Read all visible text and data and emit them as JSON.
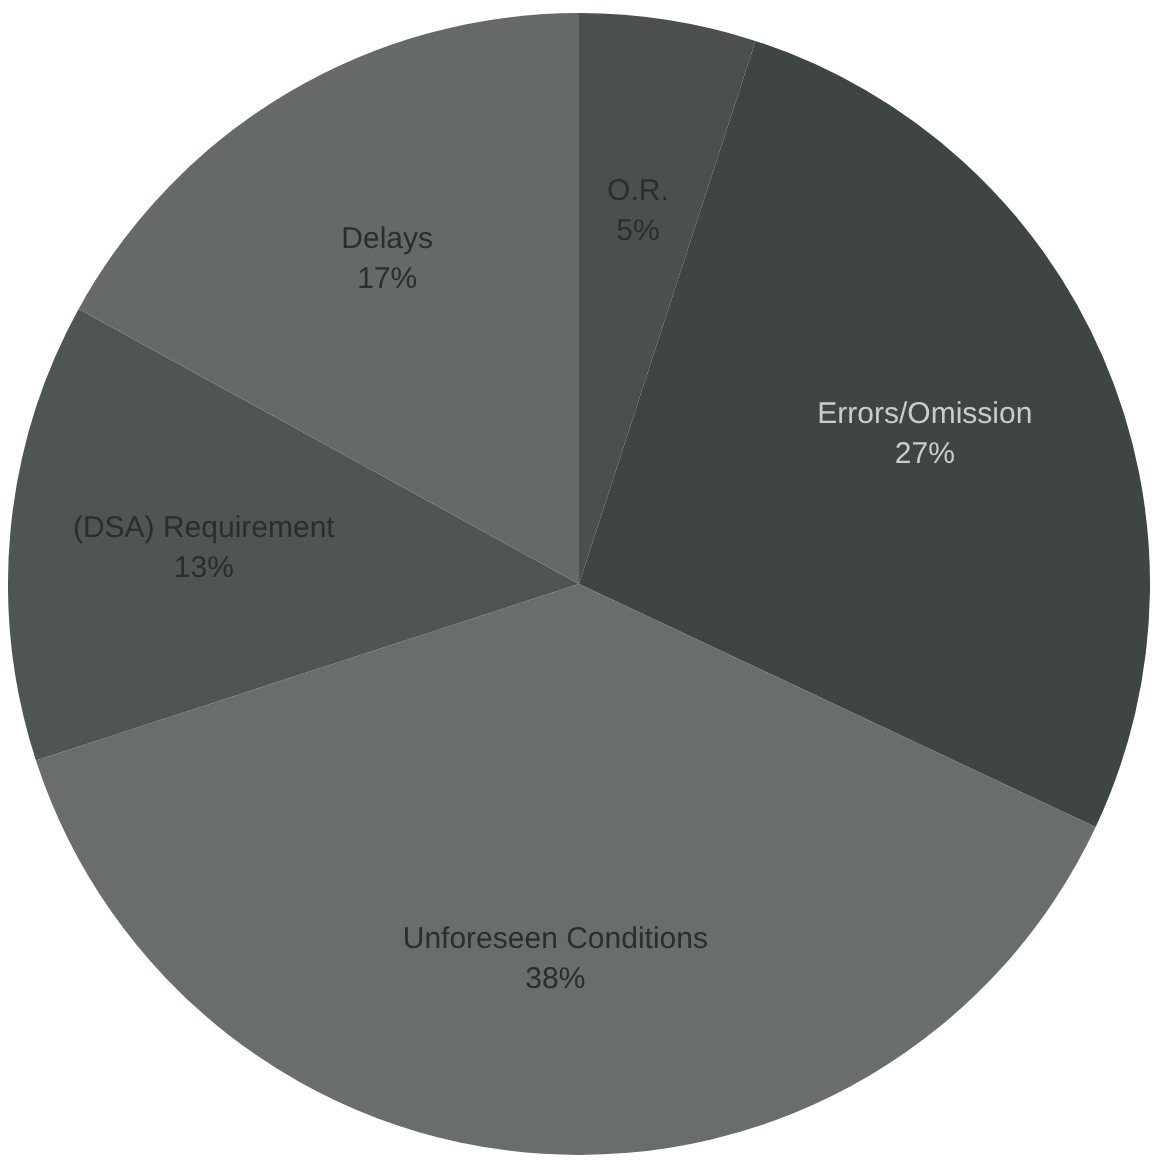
{
  "chart_data": {
    "type": "pie",
    "categories": [
      "O.R.",
      "Errors/Omission",
      "Unforeseen Conditions",
      "(DSA) Requirement",
      "Delays"
    ],
    "values": [
      5,
      27,
      38,
      13,
      17
    ],
    "value_labels": [
      "5%",
      "27%",
      "38%",
      "13%",
      "17%"
    ],
    "colors": [
      "#4b504d",
      "#3e4543",
      "#6a6e6b",
      "#4f5552",
      "#666a67"
    ],
    "legend": false
  }
}
